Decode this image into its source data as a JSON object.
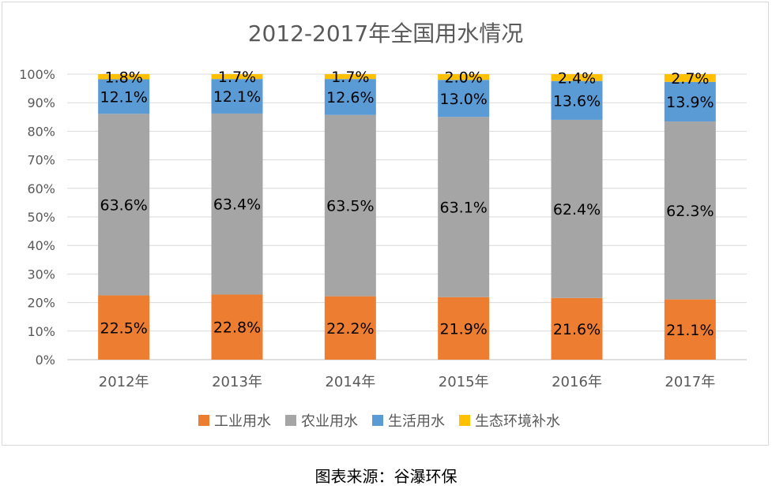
{
  "source_note": "图表来源：谷瀑环保",
  "chart_data": {
    "type": "bar",
    "stacked": true,
    "percent": true,
    "title": "2012-2017年全国用水情况",
    "categories": [
      "2012年",
      "2013年",
      "2014年",
      "2015年",
      "2016年",
      "2017年"
    ],
    "series": [
      {
        "name": "工业用水",
        "color": "#ed7d31",
        "values": [
          22.5,
          22.8,
          22.2,
          21.9,
          21.6,
          21.1
        ],
        "labels": [
          "22.5%",
          "22.8%",
          "22.2%",
          "21.9%",
          "21.6%",
          "21.1%"
        ]
      },
      {
        "name": "农业用水",
        "color": "#a5a5a5",
        "values": [
          63.6,
          63.4,
          63.5,
          63.1,
          62.4,
          62.3
        ],
        "labels": [
          "63.6%",
          "63.4%",
          "63.5%",
          "63.1%",
          "62.4%",
          "62.3%"
        ]
      },
      {
        "name": "生活用水",
        "color": "#5b9bd5",
        "values": [
          12.1,
          12.1,
          12.6,
          13.0,
          13.6,
          13.9
        ],
        "labels": [
          "12.1%",
          "12.1%",
          "12.6%",
          "13.0%",
          "13.6%",
          "13.9%"
        ]
      },
      {
        "name": "生态环境补水",
        "color": "#ffc000",
        "values": [
          1.8,
          1.7,
          1.7,
          2.0,
          2.4,
          2.7
        ],
        "labels": [
          "1.8%",
          "1.7%",
          "1.7%",
          "2.0%",
          "2.4%",
          "2.7%"
        ]
      }
    ],
    "yticks": [
      "0%",
      "10%",
      "20%",
      "30%",
      "40%",
      "50%",
      "60%",
      "70%",
      "80%",
      "90%",
      "100%"
    ],
    "ylim": [
      0,
      100
    ],
    "grid": true,
    "legend": "bottom"
  }
}
